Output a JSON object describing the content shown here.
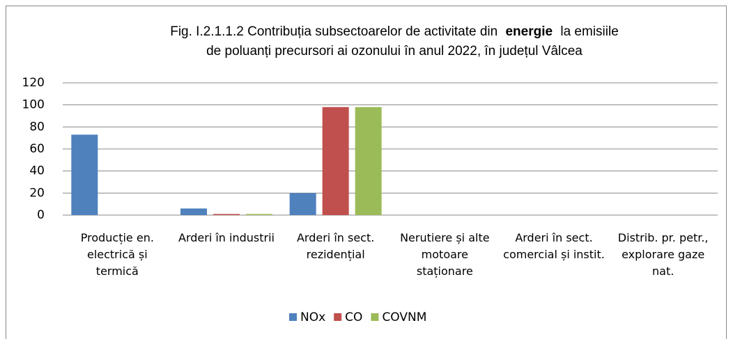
{
  "chart_data": {
    "type": "bar",
    "title": [
      "Fig. I.2.1.1.2 Contribuția subsectoarelor de activitate din",
      "energie",
      "la emisiile",
      "de poluanți precursori ai ozonului în anul 2022, în județul Vâlcea"
    ],
    "categories": [
      "Producție en. electrică și termică",
      "Arderi în industrii",
      "Arderi în sect. rezidențial",
      "Nerutiere și alte motoare staționare",
      "Arderi în sect. comercial și instit.",
      "Distrib. pr. petr., explorare gaze nat."
    ],
    "series": [
      {
        "name": "NOx",
        "color": "#4f81bd",
        "values": [
          73,
          6,
          20,
          0,
          0,
          0
        ]
      },
      {
        "name": "CO",
        "color": "#c0504d",
        "values": [
          0,
          1,
          98,
          0,
          0,
          0
        ]
      },
      {
        "name": "COVNM",
        "color": "#9bbb59",
        "values": [
          0,
          1,
          98,
          0,
          0,
          0
        ]
      }
    ],
    "ylim": [
      0,
      120
    ],
    "yticks": [
      0,
      20,
      40,
      60,
      80,
      100,
      120
    ],
    "grid": true,
    "legend": "bottom"
  }
}
